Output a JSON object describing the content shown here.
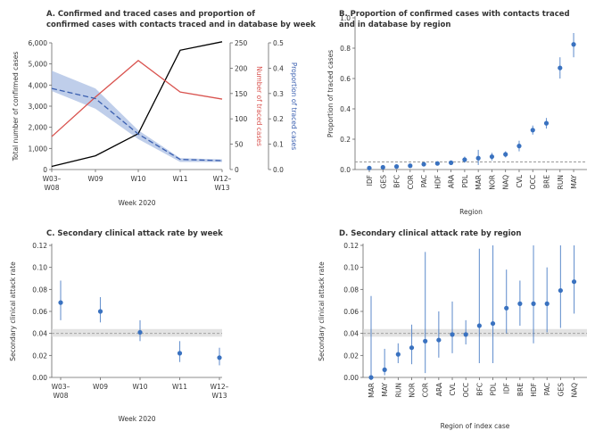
{
  "colors": {
    "confirmed": "#000000",
    "traced": "#d9534f",
    "proportion": "#3a5fb0",
    "band": "#a9bde3",
    "dot": "#3a72c0",
    "ref_line": "#999999",
    "ref_band": "#d9d9d9",
    "text": "#333333",
    "axis": "#666666"
  },
  "chart_data": [
    {
      "id": "A",
      "type": "line",
      "title": [
        "A. Confirmed and traced cases and proportion of",
        "confirmed cases with contacts traced and in database by week"
      ],
      "xlabel": "Week 2020",
      "categories": [
        [
          "W03–",
          "W08"
        ],
        [
          "W09"
        ],
        [
          "W10"
        ],
        [
          "W11"
        ],
        [
          "W12–",
          "W13"
        ]
      ],
      "ylabel_left": "Total number of confirmed cases",
      "ylabel_right1": "Number of traced cases",
      "ylabel_right2": "Proportion of traced cases",
      "y_left": {
        "ticks": [
          "0",
          "1,000",
          "2,000",
          "3,000",
          "4,000",
          "5,000",
          "6,000"
        ],
        "lim": [
          0,
          6000
        ]
      },
      "y_right1": {
        "ticks": [
          "0",
          "50",
          "100",
          "150",
          "200",
          "250"
        ],
        "lim": [
          0,
          250
        ]
      },
      "y_right2": {
        "ticks": [
          "0.0",
          "0.1",
          "0.2",
          "0.3",
          "0.4",
          "0.5"
        ],
        "lim": [
          0,
          0.5
        ]
      },
      "series": [
        {
          "name": "Confirmed cases",
          "axis": "left",
          "values": [
            150,
            650,
            1700,
            5650,
            6050
          ]
        },
        {
          "name": "Traced cases",
          "axis": "right1",
          "values": [
            65,
            143,
            215,
            153,
            139
          ]
        },
        {
          "name": "Proportion traced",
          "axis": "right2",
          "values": [
            0.32,
            0.28,
            0.14,
            0.04,
            0.035
          ],
          "lower": [
            0.31,
            0.24,
            0.12,
            0.03,
            0.03
          ],
          "upper": [
            0.39,
            0.32,
            0.155,
            0.045,
            0.04
          ]
        }
      ]
    },
    {
      "id": "B",
      "type": "scatter",
      "title": [
        "B. Proportion of confirmed cases with contacts traced",
        "and in database by region"
      ],
      "xlabel": "Region",
      "ylabel": "Proportion of traced cases",
      "categories": [
        "IDF",
        "GES",
        "BFC",
        "COR",
        "PAC",
        "HDF",
        "ARA",
        "PDL",
        "MAR",
        "NOR",
        "NAQ",
        "CVL",
        "OCC",
        "BRE",
        "RUN",
        "MAY"
      ],
      "values": [
        0.01,
        0.015,
        0.02,
        0.025,
        0.035,
        0.04,
        0.045,
        0.065,
        0.075,
        0.085,
        0.1,
        0.155,
        0.26,
        0.305,
        0.67,
        0.825
      ],
      "lower": [
        0.005,
        0.01,
        0.012,
        0.015,
        0.025,
        0.03,
        0.035,
        0.045,
        0.03,
        0.06,
        0.08,
        0.12,
        0.23,
        0.27,
        0.6,
        0.74
      ],
      "upper": [
        0.015,
        0.02,
        0.03,
        0.035,
        0.045,
        0.05,
        0.055,
        0.085,
        0.13,
        0.11,
        0.12,
        0.19,
        0.29,
        0.34,
        0.74,
        0.9
      ],
      "ref_value": 0.05,
      "ylim": [
        0,
        1.0
      ],
      "yticks": [
        "0.0",
        "0.2",
        "0.4",
        "0.6",
        "0.8",
        "1.0"
      ]
    },
    {
      "id": "C",
      "type": "scatter",
      "title": [
        "C. Secondary clinical attack rate by week"
      ],
      "xlabel": "Week 2020",
      "ylabel": "Secondary clinical attack rate",
      "categories": [
        [
          "W03–",
          "W08"
        ],
        [
          "W09"
        ],
        [
          "W10"
        ],
        [
          "W11"
        ],
        [
          "W12–",
          "W13"
        ]
      ],
      "values": [
        0.068,
        0.06,
        0.041,
        0.022,
        0.018
      ],
      "lower": [
        0.052,
        0.05,
        0.033,
        0.014,
        0.011
      ],
      "upper": [
        0.088,
        0.073,
        0.052,
        0.033,
        0.027
      ],
      "ref_value": 0.04,
      "ref_band": [
        0.037,
        0.044
      ],
      "ylim": [
        0,
        0.12
      ],
      "yticks": [
        "0.00",
        "0.02",
        "0.04",
        "0.06",
        "0.08",
        "0.10",
        "0.12"
      ]
    },
    {
      "id": "D",
      "type": "scatter",
      "title": [
        "D. Secondary clinical attack rate by region"
      ],
      "xlabel": "Region of index case",
      "ylabel": "Secondary clinical attack rate",
      "categories": [
        "MAR",
        "MAY",
        "RUN",
        "NOR",
        "COR",
        "ARA",
        "CVL",
        "OCC",
        "BFC",
        "PDL",
        "IDF",
        "BRE",
        "HDF",
        "PAC",
        "GES",
        "NAQ"
      ],
      "values": [
        0.0,
        0.007,
        0.021,
        0.027,
        0.033,
        0.034,
        0.039,
        0.039,
        0.047,
        0.049,
        0.063,
        0.067,
        0.067,
        0.067,
        0.079,
        0.087
      ],
      "lower": [
        0.0,
        0.002,
        0.013,
        0.012,
        0.004,
        0.018,
        0.022,
        0.03,
        0.013,
        0.013,
        0.04,
        0.047,
        0.031,
        0.041,
        0.045,
        0.058
      ],
      "upper": [
        0.074,
        0.026,
        0.031,
        0.048,
        0.114,
        0.06,
        0.069,
        0.052,
        0.117,
        0.12,
        0.098,
        0.088,
        0.125,
        0.1,
        0.125,
        0.125
      ],
      "ref_value": 0.04,
      "ref_band": [
        0.037,
        0.044
      ],
      "ylim": [
        0,
        0.12
      ],
      "yticks": [
        "0.00",
        "0.02",
        "0.04",
        "0.06",
        "0.08",
        "0.10",
        "0.12"
      ]
    }
  ]
}
